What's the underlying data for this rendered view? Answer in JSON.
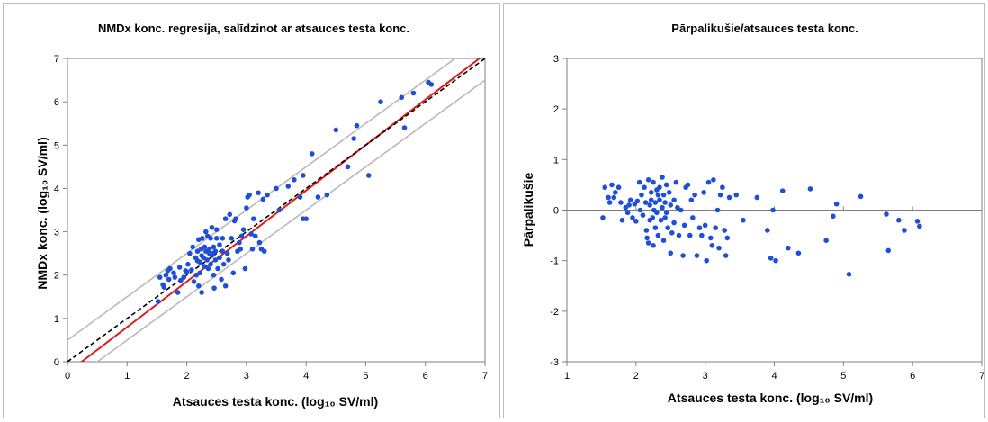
{
  "chart_data": [
    {
      "type": "scatter",
      "title": "NMDx konc. regresija, salīdzinot ar atsauces testa konc.",
      "xlabel": "Atsauces testa konc. (log₁₀ SV/ml)",
      "ylabel": "NMDx konc. (log₁₀ SV/ml)",
      "xlim": [
        0,
        7
      ],
      "ylim": [
        0,
        7
      ],
      "xticks": [
        "0",
        "1",
        "2",
        "3",
        "4",
        "5",
        "6",
        "7"
      ],
      "yticks": [
        "0",
        "1",
        "2",
        "3",
        "4",
        "5",
        "6",
        "7"
      ],
      "grid": false,
      "point_color": "#1f4fd8",
      "lines": [
        {
          "role": "regression",
          "color": "#e01b1b",
          "style": "solid",
          "slope": 1.05,
          "intercept": -0.25
        },
        {
          "role": "identity",
          "color": "#000000",
          "style": "dashed",
          "slope": 1.0,
          "intercept": 0.0
        },
        {
          "role": "upper-band",
          "color": "#b9b9b9",
          "style": "solid",
          "slope": 1.0,
          "intercept": 0.5
        },
        {
          "role": "lower-band",
          "color": "#b9b9b9",
          "style": "solid",
          "slope": 1.0,
          "intercept": -0.5
        }
      ],
      "points": [
        [
          1.52,
          1.39
        ],
        [
          1.55,
          1.95
        ],
        [
          1.6,
          1.78
        ],
        [
          1.62,
          1.72
        ],
        [
          1.65,
          2.0
        ],
        [
          1.68,
          2.1
        ],
        [
          1.7,
          1.9
        ],
        [
          1.72,
          2.15
        ],
        [
          1.78,
          2.05
        ],
        [
          1.8,
          1.95
        ],
        [
          1.85,
          1.6
        ],
        [
          1.88,
          2.18
        ],
        [
          1.9,
          1.88
        ],
        [
          1.95,
          1.95
        ],
        [
          1.98,
          2.1
        ],
        [
          2.0,
          2.08
        ],
        [
          2.02,
          2.25
        ],
        [
          2.05,
          2.5
        ],
        [
          2.08,
          2.12
        ],
        [
          2.1,
          2.65
        ],
        [
          2.12,
          1.85
        ],
        [
          2.15,
          2.4
        ],
        [
          2.16,
          2.0
        ],
        [
          2.18,
          2.55
        ],
        [
          2.18,
          2.33
        ],
        [
          2.2,
          1.75
        ],
        [
          2.2,
          2.82
        ],
        [
          2.22,
          2.3
        ],
        [
          2.22,
          2.05
        ],
        [
          2.24,
          2.6
        ],
        [
          2.25,
          1.6
        ],
        [
          2.25,
          2.45
        ],
        [
          2.26,
          2.85
        ],
        [
          2.28,
          2.4
        ],
        [
          2.3,
          2.2
        ],
        [
          2.3,
          2.65
        ],
        [
          2.32,
          2.55
        ],
        [
          2.32,
          3.0
        ],
        [
          2.34,
          2.35
        ],
        [
          2.35,
          2.9
        ],
        [
          2.36,
          2.15
        ],
        [
          2.38,
          2.5
        ],
        [
          2.38,
          2.6
        ],
        [
          2.4,
          2.25
        ],
        [
          2.4,
          2.85
        ],
        [
          2.42,
          2.45
        ],
        [
          2.42,
          3.1
        ],
        [
          2.44,
          2.5
        ],
        [
          2.45,
          2.0
        ],
        [
          2.45,
          2.65
        ],
        [
          2.46,
          1.7
        ],
        [
          2.48,
          2.55
        ],
        [
          2.48,
          2.35
        ],
        [
          2.5,
          2.85
        ],
        [
          2.5,
          3.05
        ],
        [
          2.52,
          2.15
        ],
        [
          2.55,
          2.7
        ],
        [
          2.55,
          2.4
        ],
        [
          2.58,
          1.9
        ],
        [
          2.6,
          2.55
        ],
        [
          2.6,
          2.85
        ],
        [
          2.62,
          2.25
        ],
        [
          2.65,
          1.75
        ],
        [
          2.65,
          3.3
        ],
        [
          2.68,
          2.5
        ],
        [
          2.7,
          2.35
        ],
        [
          2.72,
          3.4
        ],
        [
          2.75,
          2.85
        ],
        [
          2.78,
          2.05
        ],
        [
          2.8,
          3.25
        ],
        [
          2.82,
          3.3
        ],
        [
          2.85,
          2.55
        ],
        [
          2.88,
          2.75
        ],
        [
          2.9,
          2.6
        ],
        [
          2.92,
          2.9
        ],
        [
          2.95,
          3.05
        ],
        [
          2.98,
          2.15
        ],
        [
          3.0,
          3.55
        ],
        [
          3.02,
          3.8
        ],
        [
          3.05,
          3.85
        ],
        [
          3.08,
          2.95
        ],
        [
          3.1,
          2.6
        ],
        [
          3.12,
          3.3
        ],
        [
          3.15,
          2.9
        ],
        [
          3.2,
          3.9
        ],
        [
          3.22,
          2.75
        ],
        [
          3.25,
          2.6
        ],
        [
          3.28,
          3.75
        ],
        [
          3.3,
          2.55
        ],
        [
          3.35,
          3.85
        ],
        [
          3.5,
          4.0
        ],
        [
          3.55,
          3.5
        ],
        [
          3.7,
          4.05
        ],
        [
          3.8,
          4.2
        ],
        [
          3.9,
          3.8
        ],
        [
          3.95,
          4.3
        ],
        [
          3.95,
          3.3
        ],
        [
          4.0,
          3.3
        ],
        [
          4.1,
          4.8
        ],
        [
          4.2,
          3.8
        ],
        [
          4.35,
          3.85
        ],
        [
          4.5,
          5.35
        ],
        [
          4.7,
          4.5
        ],
        [
          4.8,
          5.15
        ],
        [
          4.85,
          5.45
        ],
        [
          5.05,
          4.3
        ],
        [
          5.25,
          6.0
        ],
        [
          5.6,
          6.1
        ],
        [
          5.65,
          5.4
        ],
        [
          5.8,
          6.2
        ],
        [
          6.05,
          6.45
        ],
        [
          6.1,
          6.4
        ]
      ]
    },
    {
      "type": "scatter",
      "title": "Pārpalikušie/atsauces testa konc.",
      "xlabel": "Atsauces testa konc. (log₁₀ SV/ml)",
      "ylabel": "Pārpalikušie",
      "xlim": [
        1,
        7
      ],
      "ylim": [
        -3,
        3
      ],
      "xticks": [
        "1",
        "2",
        "3",
        "4",
        "5",
        "6",
        "7"
      ],
      "yticks": [
        "-3",
        "-2",
        "-1",
        "0",
        "1",
        "2",
        "3"
      ],
      "grid": false,
      "point_color": "#1f4fd8",
      "points": [
        [
          1.52,
          -0.15
        ],
        [
          1.55,
          0.45
        ],
        [
          1.6,
          0.25
        ],
        [
          1.62,
          0.15
        ],
        [
          1.65,
          0.5
        ],
        [
          1.68,
          0.25
        ],
        [
          1.7,
          0.35
        ],
        [
          1.75,
          0.45
        ],
        [
          1.78,
          0.15
        ],
        [
          1.8,
          -0.2
        ],
        [
          1.85,
          0.05
        ],
        [
          1.88,
          -0.05
        ],
        [
          1.9,
          0.1
        ],
        [
          1.92,
          0.2
        ],
        [
          1.95,
          -0.15
        ],
        [
          1.98,
          0.12
        ],
        [
          2.0,
          -0.22
        ],
        [
          2.02,
          0.18
        ],
        [
          2.05,
          0.55
        ],
        [
          2.06,
          0.0
        ],
        [
          2.08,
          0.3
        ],
        [
          2.1,
          -0.1
        ],
        [
          2.12,
          0.45
        ],
        [
          2.14,
          0.15
        ],
        [
          2.15,
          -0.4
        ],
        [
          2.16,
          -0.55
        ],
        [
          2.18,
          0.6
        ],
        [
          2.18,
          -0.65
        ],
        [
          2.2,
          0.1
        ],
        [
          2.2,
          -0.2
        ],
        [
          2.22,
          0.35
        ],
        [
          2.22,
          0.2
        ],
        [
          2.24,
          -0.15
        ],
        [
          2.25,
          0.55
        ],
        [
          2.25,
          -0.7
        ],
        [
          2.26,
          0.0
        ],
        [
          2.28,
          0.15
        ],
        [
          2.28,
          -0.35
        ],
        [
          2.3,
          0.4
        ],
        [
          2.3,
          -0.05
        ],
        [
          2.32,
          0.3
        ],
        [
          2.32,
          -0.5
        ],
        [
          2.34,
          0.45
        ],
        [
          2.34,
          0.2
        ],
        [
          2.36,
          -0.2
        ],
        [
          2.38,
          0.65
        ],
        [
          2.38,
          0.05
        ],
        [
          2.4,
          0.3
        ],
        [
          2.4,
          -0.6
        ],
        [
          2.42,
          0.15
        ],
        [
          2.42,
          -0.15
        ],
        [
          2.44,
          0.5
        ],
        [
          2.44,
          -0.05
        ],
        [
          2.46,
          -0.35
        ],
        [
          2.48,
          0.35
        ],
        [
          2.5,
          0.1
        ],
        [
          2.5,
          -0.85
        ],
        [
          2.52,
          -0.45
        ],
        [
          2.55,
          0.2
        ],
        [
          2.55,
          -0.25
        ],
        [
          2.58,
          0.55
        ],
        [
          2.6,
          0.05
        ],
        [
          2.62,
          -0.5
        ],
        [
          2.65,
          0.0
        ],
        [
          2.68,
          -0.9
        ],
        [
          2.7,
          -0.3
        ],
        [
          2.72,
          0.45
        ],
        [
          2.75,
          0.5
        ],
        [
          2.78,
          -0.5
        ],
        [
          2.8,
          0.2
        ],
        [
          2.82,
          -0.15
        ],
        [
          2.85,
          0.3
        ],
        [
          2.88,
          -0.9
        ],
        [
          2.92,
          -0.35
        ],
        [
          2.95,
          -0.5
        ],
        [
          2.98,
          0.35
        ],
        [
          3.0,
          -0.3
        ],
        [
          3.02,
          -1.0
        ],
        [
          3.05,
          0.55
        ],
        [
          3.08,
          -0.55
        ],
        [
          3.1,
          -0.7
        ],
        [
          3.12,
          0.6
        ],
        [
          3.15,
          -0.35
        ],
        [
          3.18,
          0.0
        ],
        [
          3.2,
          -0.75
        ],
        [
          3.22,
          0.3
        ],
        [
          3.25,
          0.45
        ],
        [
          3.28,
          -0.4
        ],
        [
          3.3,
          -0.9
        ],
        [
          3.32,
          -0.55
        ],
        [
          3.35,
          0.25
        ],
        [
          3.45,
          0.3
        ],
        [
          3.55,
          -0.2
        ],
        [
          3.75,
          0.25
        ],
        [
          3.9,
          -0.4
        ],
        [
          3.95,
          -0.95
        ],
        [
          3.98,
          0.0
        ],
        [
          4.02,
          -1.0
        ],
        [
          4.12,
          0.38
        ],
        [
          4.2,
          -0.75
        ],
        [
          4.35,
          -0.85
        ],
        [
          4.52,
          0.42
        ],
        [
          4.75,
          -0.6
        ],
        [
          4.85,
          -0.12
        ],
        [
          4.9,
          0.12
        ],
        [
          5.08,
          -1.27
        ],
        [
          5.25,
          0.27
        ],
        [
          5.62,
          -0.08
        ],
        [
          5.65,
          -0.8
        ],
        [
          5.8,
          -0.2
        ],
        [
          5.88,
          -0.4
        ],
        [
          6.07,
          -0.22
        ],
        [
          6.1,
          -0.32
        ]
      ]
    }
  ]
}
